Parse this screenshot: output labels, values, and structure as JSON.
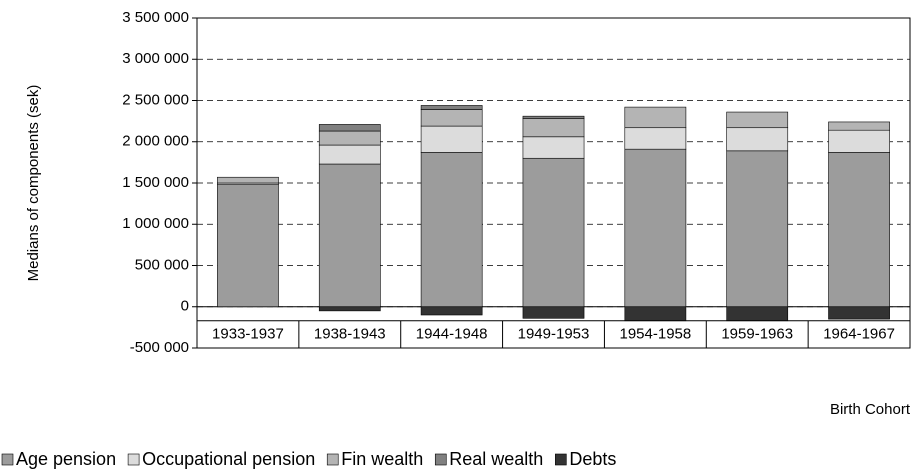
{
  "chart_data": {
    "type": "stacked-bar",
    "x_label": "Birth Cohort",
    "y_label": "Medians of components (sek)",
    "categories": [
      "1933-1937",
      "1938-1943",
      "1944-1948",
      "1949-1953",
      "1954-1958",
      "1959-1963",
      "1964-1967"
    ],
    "series": [
      {
        "name": "Age pension",
        "color": "#9c9c9c",
        "values": [
          1480000,
          1730000,
          1870000,
          1800000,
          1910000,
          1890000,
          1870000
        ]
      },
      {
        "name": "Occupational pension",
        "color": "#dcdcdc",
        "values": [
          20000,
          230000,
          320000,
          260000,
          260000,
          280000,
          270000
        ]
      },
      {
        "name": "Fin wealth",
        "color": "#b4b4b4",
        "values": [
          70000,
          170000,
          200000,
          220000,
          250000,
          190000,
          100000
        ]
      },
      {
        "name": "Real wealth",
        "color": "#808080",
        "values": [
          0,
          80000,
          50000,
          30000,
          0,
          0,
          0
        ]
      },
      {
        "name": "Debts",
        "color": "#333333",
        "values": [
          0,
          -50000,
          -100000,
          -140000,
          -170000,
          -170000,
          -150000
        ]
      }
    ],
    "ylim": [
      -500000,
      3500000
    ],
    "yticks": [
      {
        "value": -500000,
        "label": "-500 000"
      },
      0,
      {
        "value": 500000,
        "label": "500 000"
      },
      {
        "value": 1000000,
        "label": "1 000 000"
      },
      {
        "value": 1500000,
        "label": "1 500 000"
      },
      {
        "value": 2000000,
        "label": "2 000 000"
      },
      {
        "value": 2500000,
        "label": "2 500 000"
      },
      {
        "value": 3000000,
        "label": "3 000 000"
      },
      {
        "value": 3500000,
        "label": "3 500 000"
      }
    ],
    "grid": true
  }
}
